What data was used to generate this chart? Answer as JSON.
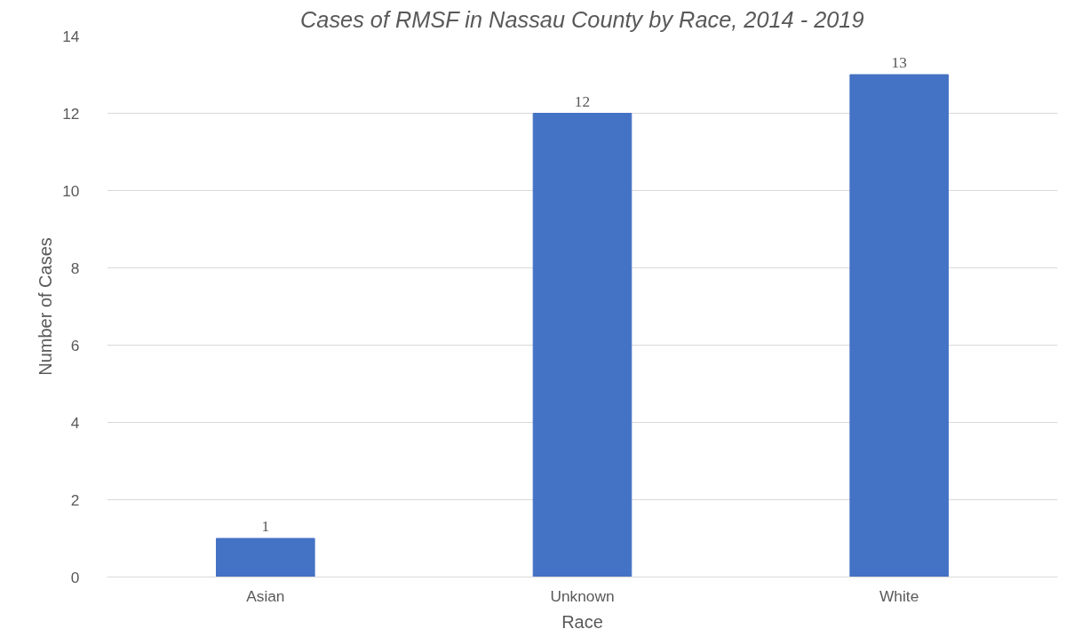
{
  "chart_data": {
    "type": "bar",
    "title": "Cases of RMSF in Nassau County by Race, 2014 - 2019",
    "xlabel": "Race",
    "ylabel": "Number of Cases",
    "categories": [
      "Asian",
      "Unknown",
      "White"
    ],
    "values": [
      1,
      12,
      13
    ],
    "color": "#4472c4",
    "ylim": [
      0,
      14
    ],
    "yticks": [
      0,
      2,
      4,
      6,
      8,
      10,
      12,
      14
    ],
    "grid": "y",
    "data_labels": true
  }
}
